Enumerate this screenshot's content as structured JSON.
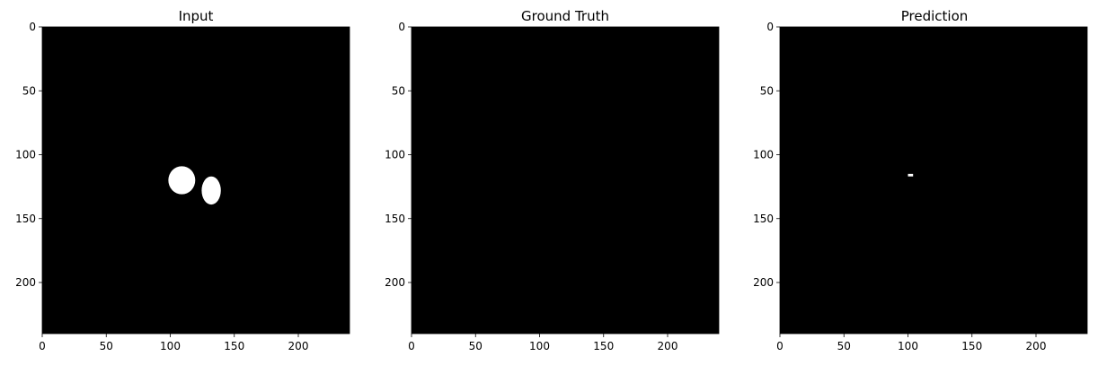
{
  "figure": {
    "panels": [
      {
        "title": "Input"
      },
      {
        "title": "Ground Truth"
      },
      {
        "title": "Prediction"
      }
    ]
  },
  "chart_data": [
    {
      "type": "heatmap",
      "title": "Input",
      "xlabel": "",
      "ylabel": "",
      "xlim": [
        0,
        240
      ],
      "ylim": [
        240,
        0
      ],
      "xticks": [
        0,
        50,
        100,
        150,
        200
      ],
      "yticks": [
        0,
        50,
        100,
        150,
        200
      ],
      "colormap": "gray",
      "background_color": "#000000",
      "foreground_color": "#ffffff",
      "regions": [
        {
          "label": "blob-left",
          "center": [
            109,
            120
          ],
          "extent": [
            21,
            22
          ]
        },
        {
          "label": "blob-right",
          "center": [
            132,
            128
          ],
          "extent": [
            15,
            22
          ]
        }
      ]
    },
    {
      "type": "heatmap",
      "title": "Ground Truth",
      "xlabel": "",
      "ylabel": "",
      "xlim": [
        0,
        240
      ],
      "ylim": [
        240,
        0
      ],
      "xticks": [
        0,
        50,
        100,
        150,
        200
      ],
      "yticks": [
        0,
        50,
        100,
        150,
        200
      ],
      "colormap": "gray",
      "background_color": "#000000",
      "foreground_color": "#ffffff",
      "regions": []
    },
    {
      "type": "heatmap",
      "title": "Prediction",
      "xlabel": "",
      "ylabel": "",
      "xlim": [
        0,
        240
      ],
      "ylim": [
        240,
        0
      ],
      "xticks": [
        0,
        50,
        100,
        150,
        200
      ],
      "yticks": [
        0,
        50,
        100,
        150,
        200
      ],
      "colormap": "gray",
      "background_color": "#000000",
      "foreground_color": "#ffffff",
      "regions": [
        {
          "label": "spot",
          "center": [
            102,
            116
          ],
          "extent": [
            4,
            2
          ]
        }
      ]
    }
  ]
}
